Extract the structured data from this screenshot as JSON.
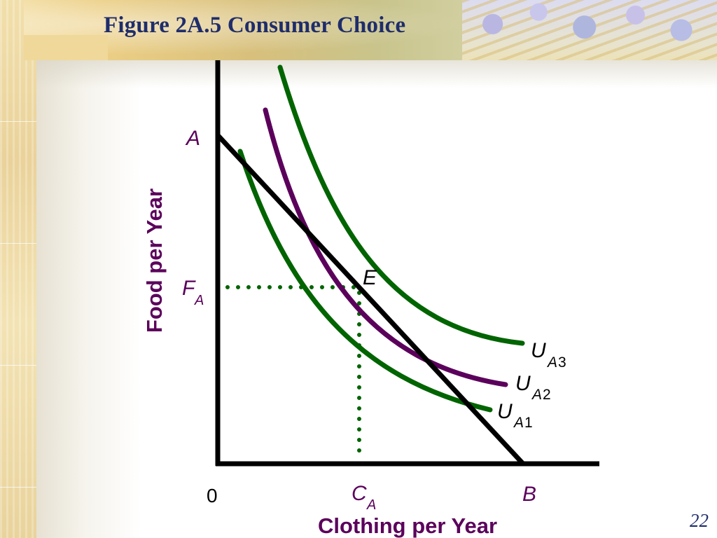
{
  "slide": {
    "title": "Figure 2A.5 Consumer Choice",
    "page_number": "22"
  },
  "diagram": {
    "y_axis_label": "Food per Year",
    "x_axis_label": "Clothing per Year",
    "origin_label": "0",
    "point_a_label": "A",
    "point_b_label": "B",
    "point_e_label": "E",
    "food_quantity": {
      "base": "F",
      "sub": "A"
    },
    "clothing_quantity": {
      "base": "C",
      "sub": "A"
    },
    "curves": [
      {
        "id": "ua1",
        "base": "U",
        "sub": "A",
        "num": "1",
        "color": "#006400"
      },
      {
        "id": "ua2",
        "base": "U",
        "sub": "A",
        "num": "2",
        "color": "#5b005b"
      },
      {
        "id": "ua3",
        "base": "U",
        "sub": "A",
        "num": "3",
        "color": "#006400"
      }
    ],
    "colors": {
      "axis": "#000000",
      "budget_line": "#000000",
      "axis_label": "#5b005b",
      "dotted_guides": "#006400"
    }
  }
}
